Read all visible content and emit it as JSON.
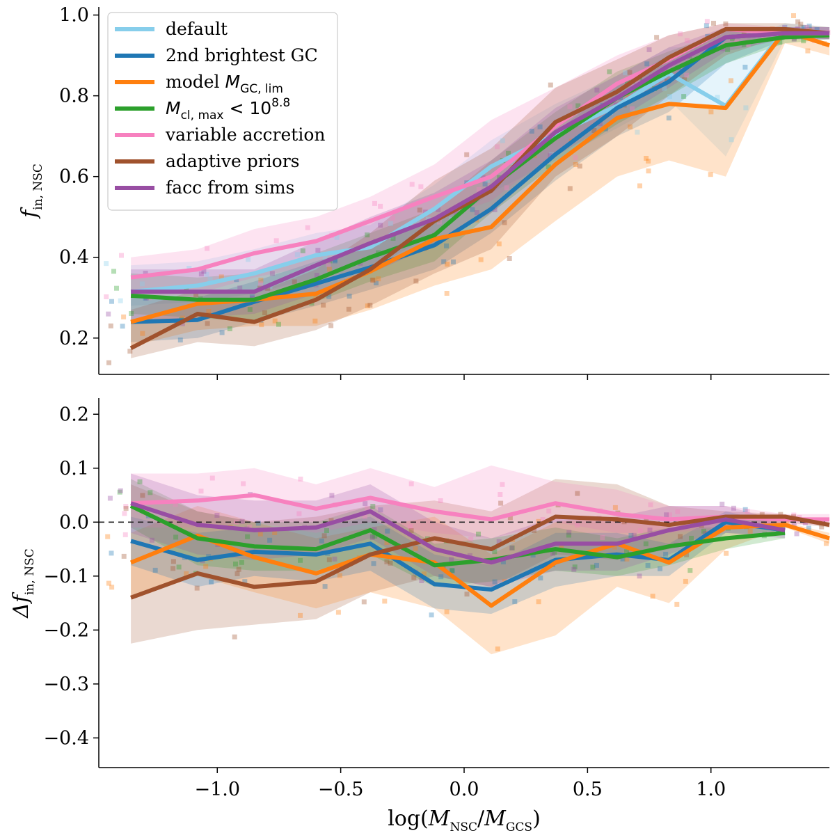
{
  "chart_data": [
    {
      "type": "line",
      "panel": "top",
      "ylabel_main": "f",
      "ylabel_sub": "in, NSC",
      "xlim": [
        -1.48,
        1.48
      ],
      "ylim": [
        0.11,
        1.02
      ],
      "yticks": [
        0.2,
        0.4,
        0.6,
        0.8,
        1.0
      ],
      "ytick_labels": [
        "0.2",
        "0.4",
        "0.6",
        "0.8",
        "1.0"
      ],
      "x": [
        -1.35,
        -1.08,
        -0.85,
        -0.6,
        -0.38,
        -0.12,
        0.11,
        0.37,
        0.62,
        0.83,
        1.06,
        1.3,
        1.48
      ],
      "series": [
        {
          "name": "default",
          "color": "#87ceeb",
          "values": [
            0.315,
            0.33,
            0.36,
            0.405,
            0.425,
            0.52,
            0.625,
            0.705,
            0.775,
            0.855,
            0.775,
            0.965,
            0.955
          ]
        },
        {
          "name": "2nd brightest GC",
          "color": "#1f77b4",
          "values": [
            0.24,
            0.245,
            0.29,
            0.335,
            0.375,
            0.43,
            0.52,
            0.655,
            0.77,
            0.835,
            0.945,
            0.955,
            0.955
          ]
        },
        {
          "name": "model M_GC,lim",
          "color": "#ff7f0e",
          "values": [
            0.24,
            0.285,
            0.295,
            0.31,
            0.365,
            0.445,
            0.475,
            0.63,
            0.745,
            0.78,
            0.77,
            0.96,
            0.925
          ]
        },
        {
          "name": "M_cl,max < 10^8.8",
          "color": "#2ca02c",
          "values": [
            0.305,
            0.295,
            0.295,
            0.345,
            0.4,
            0.455,
            0.575,
            0.695,
            0.795,
            0.86,
            0.925,
            0.945,
            0.95
          ]
        },
        {
          "name": "variable accretion",
          "color": "#f781bf",
          "values": [
            0.35,
            0.37,
            0.41,
            0.44,
            0.49,
            0.55,
            0.6,
            0.725,
            0.83,
            0.89,
            0.965,
            0.955,
            0.955
          ]
        },
        {
          "name": "adaptive priors",
          "color": "#a0522d",
          "values": [
            0.175,
            0.26,
            0.24,
            0.295,
            0.37,
            0.49,
            0.565,
            0.735,
            0.81,
            0.895,
            0.965,
            0.965,
            0.955
          ]
        },
        {
          "name": "facc from sims",
          "color": "#984ea3",
          "values": [
            0.315,
            0.315,
            0.315,
            0.38,
            0.435,
            0.495,
            0.575,
            0.71,
            0.795,
            0.875,
            0.945,
            0.955,
            0.955
          ]
        }
      ],
      "bands": [
        {
          "name": "default",
          "color": "#87ceeb",
          "lower": [
            0.28,
            0.29,
            0.31,
            0.35,
            0.37,
            0.46,
            0.56,
            0.64,
            0.72,
            0.79,
            0.65,
            0.94,
            0.94
          ],
          "upper": [
            0.38,
            0.39,
            0.42,
            0.46,
            0.48,
            0.58,
            0.69,
            0.78,
            0.85,
            0.92,
            0.92,
            0.98,
            0.97
          ]
        },
        {
          "name": "2nd brightest GC",
          "color": "#1f77b4",
          "lower": [
            0.19,
            0.2,
            0.24,
            0.28,
            0.32,
            0.37,
            0.46,
            0.59,
            0.7,
            0.76,
            0.88,
            0.94,
            0.94
          ],
          "upper": [
            0.3,
            0.3,
            0.34,
            0.39,
            0.43,
            0.49,
            0.58,
            0.71,
            0.83,
            0.9,
            0.97,
            0.97,
            0.97
          ]
        },
        {
          "name": "model M_GC,lim",
          "color": "#ff7f0e",
          "lower": [
            0.18,
            0.22,
            0.23,
            0.23,
            0.27,
            0.33,
            0.37,
            0.49,
            0.6,
            0.64,
            0.6,
            0.93,
            0.9
          ]
        },
        {
          "name": "M_cl,max < 10^8.8",
          "color": "#2ca02c",
          "lower": [
            0.26,
            0.25,
            0.24,
            0.29,
            0.34,
            0.39,
            0.51,
            0.63,
            0.73,
            0.8,
            0.88,
            0.93,
            0.94
          ],
          "upper": [
            0.36,
            0.35,
            0.36,
            0.41,
            0.46,
            0.52,
            0.64,
            0.76,
            0.86,
            0.91,
            0.96,
            0.96,
            0.96
          ]
        },
        {
          "name": "variable accretion",
          "color": "#f781bf",
          "lower": [
            0.3,
            0.31,
            0.35,
            0.38,
            0.43,
            0.49,
            0.54,
            0.66,
            0.77,
            0.84,
            0.93,
            0.94,
            0.94
          ],
          "upper": [
            0.4,
            0.42,
            0.47,
            0.5,
            0.55,
            0.63,
            0.74,
            0.82,
            0.9,
            0.95,
            0.98,
            0.97,
            0.97
          ]
        },
        {
          "name": "adaptive priors",
          "color": "#a0522d",
          "lower": [
            0.15,
            0.19,
            0.18,
            0.22,
            0.28,
            0.36,
            0.42,
            0.6,
            0.7,
            0.8,
            0.9,
            0.95,
            0.94
          ],
          "upper": [
            0.27,
            0.32,
            0.31,
            0.37,
            0.46,
            0.59,
            0.67,
            0.82,
            0.89,
            0.95,
            0.98,
            0.98,
            0.97
          ]
        },
        {
          "name": "facc from sims",
          "color": "#984ea3",
          "lower": [
            0.24,
            0.25,
            0.26,
            0.31,
            0.36,
            0.43,
            0.51,
            0.65,
            0.74,
            0.82,
            0.91,
            0.94,
            0.94
          ],
          "upper": [
            0.37,
            0.37,
            0.37,
            0.44,
            0.5,
            0.56,
            0.64,
            0.77,
            0.85,
            0.92,
            0.97,
            0.97,
            0.97
          ]
        }
      ],
      "legend": {
        "placement": "top-left",
        "entries": [
          {
            "text": "default",
            "color": "#87ceeb"
          },
          {
            "text": "2nd brightest GC",
            "color": "#1f77b4"
          },
          {
            "text": "model ",
            "math": "M",
            "sub": "GC, lim",
            "color": "#ff7f0e"
          },
          {
            "text": "",
            "math": "M",
            "sub": "cl, max",
            "after": " < 10",
            "sup": "8.8",
            "color": "#2ca02c"
          },
          {
            "text": "variable accretion",
            "color": "#f781bf"
          },
          {
            "text": "adaptive priors",
            "color": "#a0522d"
          },
          {
            "text": "facc from sims",
            "color": "#984ea3"
          }
        ]
      }
    },
    {
      "type": "line",
      "panel": "bottom",
      "ylabel_main": "Δf",
      "ylabel_sub": "in, NSC",
      "xlabel_pre": "log(",
      "xlabel_num": "M",
      "xlabel_num_sub": "NSC",
      "xlabel_slash": "/",
      "xlabel_den": "M",
      "xlabel_den_sub": "GCS",
      "xlabel_post": ")",
      "xlim": [
        -1.48,
        1.48
      ],
      "ylim": [
        -0.455,
        0.23
      ],
      "reference_line": 0.0,
      "yticks": [
        -0.4,
        -0.3,
        -0.2,
        -0.1,
        0.0,
        0.1,
        0.2
      ],
      "ytick_labels": [
        "−0.4",
        "−0.3",
        "−0.2",
        "−0.1",
        "0.0",
        "0.1",
        "0.2"
      ],
      "xticks": [
        -1.0,
        -0.5,
        0.0,
        0.5,
        1.0
      ],
      "xtick_labels": [
        "−1.0",
        "−0.5",
        "0.0",
        "0.5",
        "1.0"
      ],
      "x": [
        -1.35,
        -1.08,
        -0.85,
        -0.6,
        -0.38,
        -0.12,
        0.11,
        0.37,
        0.62,
        0.83,
        1.06,
        1.3,
        1.48
      ],
      "series": [
        {
          "name": "2nd brightest GC",
          "color": "#1f77b4",
          "values": [
            -0.035,
            -0.07,
            -0.055,
            -0.06,
            -0.04,
            -0.115,
            -0.125,
            -0.07,
            -0.06,
            -0.07,
            0.0,
            -0.015,
            null
          ]
        },
        {
          "name": "model M_GC,lim",
          "color": "#ff7f0e",
          "values": [
            -0.075,
            -0.025,
            -0.065,
            -0.095,
            -0.06,
            -0.075,
            -0.155,
            -0.075,
            -0.04,
            -0.075,
            -0.01,
            -0.005,
            -0.03
          ]
        },
        {
          "name": "M_cl,max < 10^8.8",
          "color": "#2ca02c",
          "values": [
            0.03,
            -0.03,
            -0.045,
            -0.05,
            -0.015,
            -0.08,
            -0.07,
            -0.05,
            -0.065,
            -0.045,
            -0.03,
            -0.02,
            null
          ]
        },
        {
          "name": "variable accretion",
          "color": "#f781bf",
          "values": [
            0.035,
            0.04,
            0.05,
            0.025,
            0.045,
            0.02,
            0.005,
            0.035,
            0.015,
            0.005,
            0.01,
            0.005,
            0.005
          ]
        },
        {
          "name": "adaptive priors",
          "color": "#a0522d",
          "values": [
            -0.14,
            -0.095,
            -0.12,
            -0.11,
            -0.06,
            -0.03,
            -0.05,
            0.01,
            0.005,
            -0.005,
            0.01,
            0.01,
            -0.005
          ]
        },
        {
          "name": "facc from sims",
          "color": "#984ea3",
          "values": [
            0.035,
            -0.005,
            -0.015,
            -0.01,
            0.02,
            -0.05,
            -0.075,
            -0.04,
            -0.04,
            -0.015,
            0.005,
            -0.015,
            null
          ]
        }
      ],
      "bands": [
        {
          "name": "adaptive priors",
          "color": "#a0522d",
          "lower": [
            -0.225,
            -0.2,
            -0.19,
            -0.18,
            -0.13,
            -0.1,
            -0.12,
            -0.06,
            -0.07,
            -0.05,
            -0.01,
            0.0,
            -0.01
          ],
          "upper": [
            0.07,
            0.02,
            0.0,
            0.01,
            0.03,
            0.04,
            0.02,
            0.08,
            0.07,
            0.03,
            0.02,
            0.015,
            0.0
          ]
        },
        {
          "name": "model M_GC,lim",
          "color": "#ff7f0e",
          "lower": [
            -0.14,
            -0.1,
            -0.13,
            -0.16,
            -0.13,
            -0.16,
            -0.245,
            -0.21,
            -0.12,
            -0.15,
            -0.05,
            -0.01,
            -0.04
          ],
          "upper": [
            -0.02,
            0.03,
            0.0,
            -0.03,
            -0.01,
            0.01,
            -0.06,
            0.0,
            0.01,
            -0.01,
            0.01,
            0.0,
            -0.02
          ]
        },
        {
          "name": "2nd brightest GC",
          "color": "#1f77b4",
          "lower": [
            -0.08,
            -0.12,
            -0.1,
            -0.11,
            -0.09,
            -0.16,
            -0.17,
            -0.12,
            -0.1,
            -0.1,
            -0.02,
            -0.025,
            null
          ],
          "upper": [
            0.01,
            -0.02,
            -0.01,
            -0.01,
            0.01,
            -0.06,
            -0.08,
            -0.02,
            -0.02,
            -0.04,
            0.02,
            -0.005,
            null
          ]
        },
        {
          "name": "M_cl,max < 10^8.8",
          "color": "#2ca02c",
          "lower": [
            -0.01,
            -0.08,
            -0.09,
            -0.09,
            -0.06,
            -0.12,
            -0.11,
            -0.09,
            -0.1,
            -0.08,
            -0.05,
            -0.03,
            null
          ],
          "upper": [
            0.08,
            0.02,
            0.0,
            0.0,
            0.03,
            -0.04,
            -0.03,
            -0.01,
            -0.03,
            -0.01,
            -0.01,
            -0.01,
            null
          ]
        },
        {
          "name": "variable accretion",
          "color": "#f781bf",
          "lower": [
            -0.01,
            -0.01,
            0.0,
            -0.02,
            0.0,
            -0.02,
            -0.03,
            0.0,
            -0.02,
            -0.02,
            -0.01,
            -0.005,
            -0.005
          ],
          "upper": [
            0.09,
            0.09,
            0.1,
            0.07,
            0.1,
            0.065,
            0.105,
            0.075,
            0.06,
            0.03,
            0.03,
            0.015,
            0.015
          ]
        },
        {
          "name": "facc from sims",
          "color": "#984ea3",
          "lower": [
            -0.02,
            -0.06,
            -0.07,
            -0.06,
            -0.03,
            -0.1,
            -0.12,
            -0.09,
            -0.09,
            -0.06,
            -0.02,
            -0.03,
            null
          ],
          "upper": [
            0.09,
            0.05,
            0.04,
            0.04,
            0.07,
            0.0,
            -0.03,
            0.01,
            0.01,
            0.03,
            0.03,
            0.0,
            null
          ]
        }
      ]
    }
  ]
}
